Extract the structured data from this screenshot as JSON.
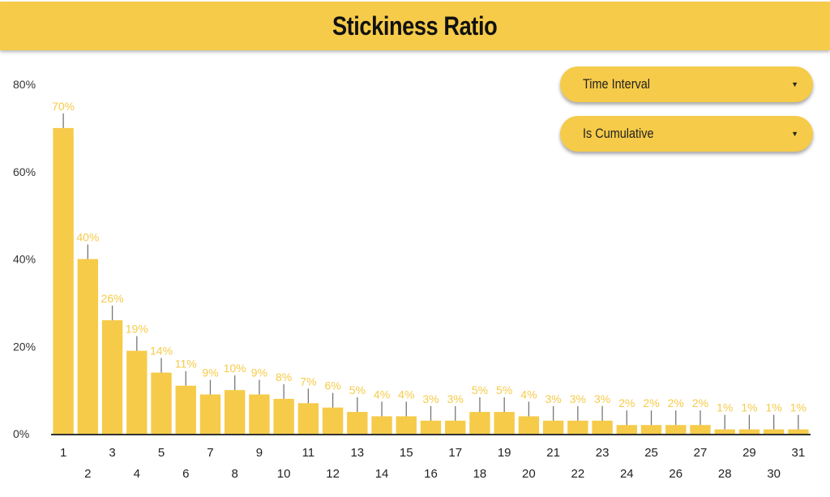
{
  "header": {
    "title": "Stickiness Ratio"
  },
  "controls": [
    {
      "label": "Time Interval",
      "icon": "caret-down-icon"
    },
    {
      "label": "Is Cumulative",
      "icon": "caret-down-icon"
    }
  ],
  "colors": {
    "accent": "#F6CB49",
    "errorbar": "#777777",
    "axis": "#333333"
  },
  "chart_data": {
    "type": "bar",
    "title": "Stickiness Ratio",
    "xlabel": "",
    "ylabel": "",
    "categories": [
      "1",
      "2",
      "3",
      "4",
      "5",
      "6",
      "7",
      "8",
      "9",
      "10",
      "11",
      "12",
      "13",
      "14",
      "15",
      "16",
      "17",
      "18",
      "19",
      "20",
      "21",
      "22",
      "23",
      "24",
      "25",
      "26",
      "27",
      "28",
      "29",
      "30",
      "31"
    ],
    "values": [
      70,
      40,
      26,
      19,
      14,
      11,
      9,
      10,
      9,
      8,
      7,
      6,
      5,
      4,
      4,
      3,
      3,
      5,
      5,
      4,
      3,
      3,
      3,
      2,
      2,
      2,
      2,
      1,
      1,
      1,
      1
    ],
    "data_labels": [
      "70%",
      "40%",
      "26%",
      "19%",
      "14%",
      "11%",
      "9%",
      "10%",
      "9%",
      "8%",
      "7%",
      "6%",
      "5%",
      "4%",
      "4%",
      "3%",
      "3%",
      "5%",
      "5%",
      "4%",
      "3%",
      "3%",
      "3%",
      "2%",
      "2%",
      "2%",
      "2%",
      "1%",
      "1%",
      "1%",
      "1%"
    ],
    "error_bars": true,
    "ylim": [
      0,
      80
    ],
    "yticks": [
      0,
      20,
      40,
      60,
      80
    ],
    "ytick_labels": [
      "0%",
      "20%",
      "40%",
      "60%",
      "80%"
    ],
    "grid": false
  }
}
